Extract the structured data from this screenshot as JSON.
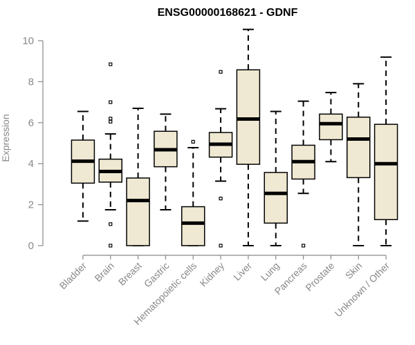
{
  "chart_data": {
    "type": "boxplot",
    "title": "ENSG00000168621 - GDNF",
    "xlabel": "",
    "ylabel": "Expression",
    "ylim": [
      0,
      10.5
    ],
    "yticks": [
      0,
      2,
      4,
      6,
      8,
      10
    ],
    "ytick_labels": [
      "0",
      "2",
      "4",
      "6",
      "8",
      "10"
    ],
    "categories": [
      "Bladder",
      "Brain",
      "Breast",
      "Gastric",
      "Hematopoietic cells",
      "Kidney",
      "Liver",
      "Lung",
      "Pancreas",
      "Prostate",
      "Skin",
      "Unknown / Other"
    ],
    "series": [
      {
        "name": "Bladder",
        "whisker_low": 1.2,
        "q1": 3.05,
        "median": 4.12,
        "q3": 5.15,
        "whisker_high": 6.55,
        "outliers": []
      },
      {
        "name": "Brain",
        "whisker_low": 1.75,
        "q1": 3.1,
        "median": 3.62,
        "q3": 4.22,
        "whisker_high": 5.45,
        "outliers": [
          8.85,
          7.0,
          6.2,
          6.05,
          1.05,
          0.0
        ]
      },
      {
        "name": "Breast",
        "whisker_low": 0.0,
        "q1": 0.0,
        "median": 2.2,
        "q3": 3.3,
        "whisker_high": 6.7,
        "outliers": []
      },
      {
        "name": "Gastric",
        "whisker_low": 1.75,
        "q1": 3.85,
        "median": 4.68,
        "q3": 5.58,
        "whisker_high": 6.42,
        "outliers": []
      },
      {
        "name": "Hematopoietic cells",
        "whisker_low": 0.0,
        "q1": 0.0,
        "median": 1.1,
        "q3": 1.9,
        "whisker_high": 4.78,
        "outliers": [
          5.07
        ]
      },
      {
        "name": "Kidney",
        "whisker_low": 3.15,
        "q1": 4.32,
        "median": 4.95,
        "q3": 5.52,
        "whisker_high": 6.68,
        "outliers": [
          8.48,
          2.3,
          0.0
        ]
      },
      {
        "name": "Liver",
        "whisker_low": 0.0,
        "q1": 3.97,
        "median": 6.18,
        "q3": 8.58,
        "whisker_high": 10.55,
        "outliers": []
      },
      {
        "name": "Lung",
        "whisker_low": 0.0,
        "q1": 1.1,
        "median": 2.55,
        "q3": 3.57,
        "whisker_high": 6.55,
        "outliers": []
      },
      {
        "name": "Pancreas",
        "whisker_low": 2.55,
        "q1": 3.25,
        "median": 4.1,
        "q3": 4.9,
        "whisker_high": 7.05,
        "outliers": [
          0.0
        ]
      },
      {
        "name": "Prostate",
        "whisker_low": 4.1,
        "q1": 5.17,
        "median": 5.95,
        "q3": 6.42,
        "whisker_high": 7.47,
        "outliers": []
      },
      {
        "name": "Skin",
        "whisker_low": 0.0,
        "q1": 3.32,
        "median": 5.2,
        "q3": 6.27,
        "whisker_high": 7.9,
        "outliers": []
      },
      {
        "name": "Unknown / Other",
        "whisker_low": 0.0,
        "q1": 1.27,
        "median": 4.0,
        "q3": 5.92,
        "whisker_high": 9.2,
        "outliers": []
      }
    ],
    "box_fill": "#efe8d2",
    "box_stroke": "#000000",
    "axis_color": "#888888",
    "grid": false,
    "legend": "none"
  }
}
